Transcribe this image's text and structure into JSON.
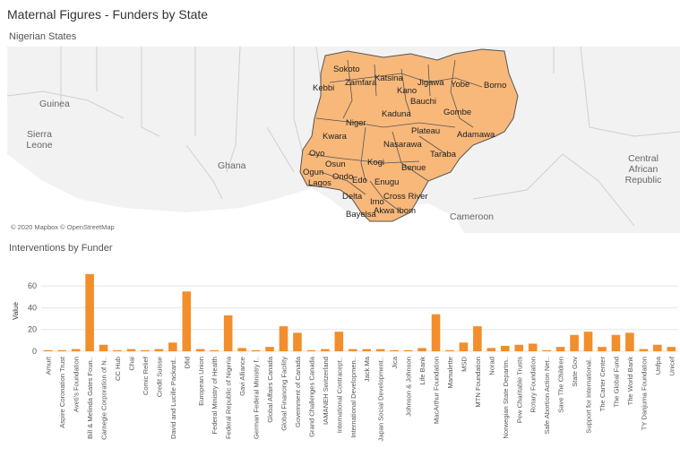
{
  "dashboard_title": "Maternal Figures - Funders by State",
  "map": {
    "title": "Nigerian States",
    "attribution": "© 2020 Mapbox © OpenStreetMap",
    "fill_color": "#f7b87a",
    "country_labels": [
      "Guinea",
      "Sierra Leone",
      "Ghana",
      "Central African Republic",
      "Cameroon"
    ],
    "state_labels": [
      "Sokoto",
      "Katsina",
      "Jigawa",
      "Yobe",
      "Borno",
      "Kebbi",
      "Zamfara",
      "Kano",
      "Bauchi",
      "Gombe",
      "Kaduna",
      "Niger",
      "Kwara",
      "Plateau",
      "Adamawa",
      "Nasarawa",
      "Kogi",
      "Taraba",
      "Oyo",
      "Osun",
      "Benue",
      "Ogun",
      "Ondo",
      "Edo",
      "Lagos",
      "Enugu",
      "Delta",
      "Imo",
      "Cross River",
      "Bayelsa",
      "Akwa Ibom"
    ]
  },
  "chart_data": {
    "type": "bar",
    "title": "Interventions by Funder",
    "ylabel": "Value",
    "ylim": [
      0,
      75
    ],
    "yticks": [
      0,
      20,
      40,
      60
    ],
    "bar_color": "#f28e2b",
    "categories": [
      "Amurt",
      "Aspire Coronation Trust",
      "Aveti's Foundation",
      "Bill & Melinda Gates Foun..",
      "Carnegie Corporation of N..",
      "CC Hub",
      "Chai",
      "Comic Relief",
      "Credit Suisse",
      "David and Lucille Packard..",
      "Dfid",
      "European Union",
      "Federal Ministry of Health",
      "Federal Republic of Nigeria",
      "Gavi Alliance",
      "German Federal Ministry f..",
      "Global Affairs Canada",
      "Global Financing Facility",
      "Government of Canada",
      "Grand Challenges Canada",
      "IAMANEH Switzerland",
      "International Contracept..",
      "International Developmen..",
      "Jack.Ma",
      "Japan Social Development..",
      "Jica",
      "Johnson & Johnson",
      "Life Bank",
      "MacArthur Foundation",
      "Mamalette",
      "MSD",
      "MTN Foundation",
      "Norad",
      "Norwegian State Departm..",
      "Pew Charitable Trusts",
      "Rotary Foundation",
      "Safe Abortion Action Net..",
      "Save The Children",
      "State Gov",
      "Support for International..",
      "The Carter Center",
      "The Global Fund",
      "The World Bank",
      "TY Danjuma Foundation",
      "Unfpa",
      "Unicef"
    ],
    "values": [
      1,
      1,
      2,
      71,
      6,
      1,
      2,
      1,
      2,
      8,
      55,
      2,
      1,
      33,
      3,
      1,
      4,
      23,
      17,
      1,
      2,
      18,
      2,
      2,
      2,
      1,
      1,
      3,
      34,
      1,
      8,
      23,
      3,
      5,
      6,
      7,
      1,
      4,
      15,
      18,
      4,
      15,
      17,
      2,
      6,
      4
    ]
  }
}
